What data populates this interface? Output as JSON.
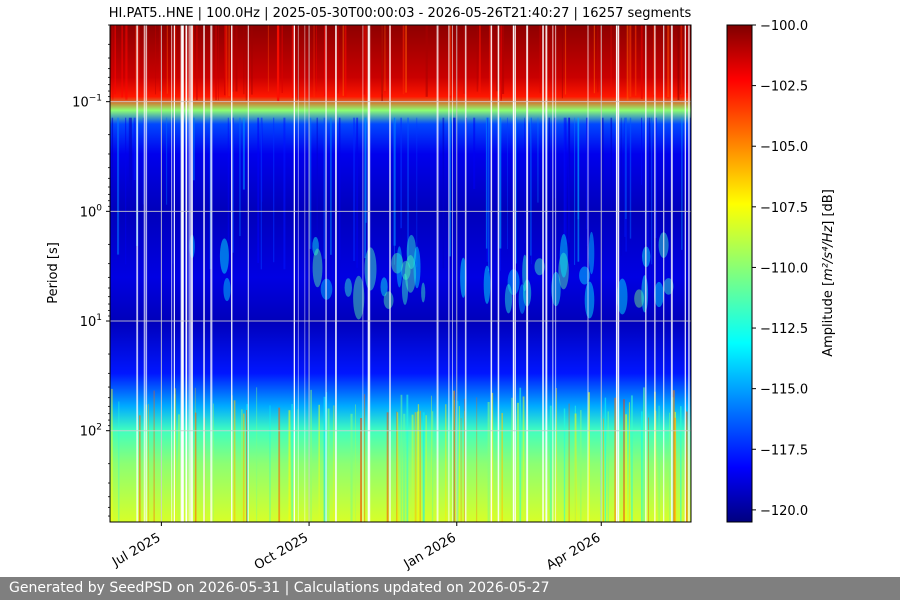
{
  "chart_data": {
    "type": "heatmap",
    "title": "HI.PAT5..HNE | 100.0Hz | 2025-05-30T00:00:03 - 2026-05-26T21:40:27 | 16257 segments",
    "ylabel": "Period [s]",
    "ylim": [
      0.02,
      680
    ],
    "y_scale": "log",
    "y_ticks": [
      {
        "value": 0.1,
        "base": "10",
        "exp": "−1"
      },
      {
        "value": 1,
        "base": "10",
        "exp": "0"
      },
      {
        "value": 10,
        "base": "10",
        "exp": "1"
      },
      {
        "value": 100,
        "base": "10",
        "exp": "2"
      }
    ],
    "x_range": [
      "2025-05-30",
      "2026-05-26"
    ],
    "x_ticks": [
      {
        "date": "2025-07-01",
        "label": "Jul 2025"
      },
      {
        "date": "2025-10-01",
        "label": "Oct 2025"
      },
      {
        "date": "2026-01-01",
        "label": "Jan 2026"
      },
      {
        "date": "2026-04-01",
        "label": "Apr 2026"
      }
    ],
    "grid": true,
    "colormap": "jet",
    "colorbar": {
      "label_prefix": "Amplitude [",
      "label_math": "m²/s⁴/Hz",
      "label_suffix": "] [dB]",
      "range": [
        -120.5,
        -100.0
      ],
      "ticks": [
        "−100.0",
        "−102.5",
        "−105.0",
        "−107.5",
        "−110.0",
        "−112.5",
        "−115.0",
        "−117.5",
        "−120.0"
      ],
      "tick_values": [
        -100.0,
        -102.5,
        -105.0,
        -107.5,
        -110.0,
        -112.5,
        -115.0,
        -117.5,
        -120.0
      ]
    },
    "amplitude_profile": [
      {
        "period": 0.02,
        "db": -100.3
      },
      {
        "period": 0.06,
        "db": -101.5
      },
      {
        "period": 0.09,
        "db": -103.0
      },
      {
        "period": 0.12,
        "db": -110.0
      },
      {
        "period": 0.16,
        "db": -116.5
      },
      {
        "period": 0.3,
        "db": -118.3
      },
      {
        "period": 1,
        "db": -119.3
      },
      {
        "period": 4,
        "db": -118.5
      },
      {
        "period": 10,
        "db": -119.3
      },
      {
        "period": 30,
        "db": -117.5
      },
      {
        "period": 60,
        "db": -114.5
      },
      {
        "period": 100,
        "db": -111.5
      },
      {
        "period": 200,
        "db": -110.0
      },
      {
        "period": 680,
        "db": -108.5
      }
    ]
  },
  "footer": {
    "text": "Generated by SeedPSD on 2026-05-31 | Calculations updated on 2026-05-27"
  }
}
